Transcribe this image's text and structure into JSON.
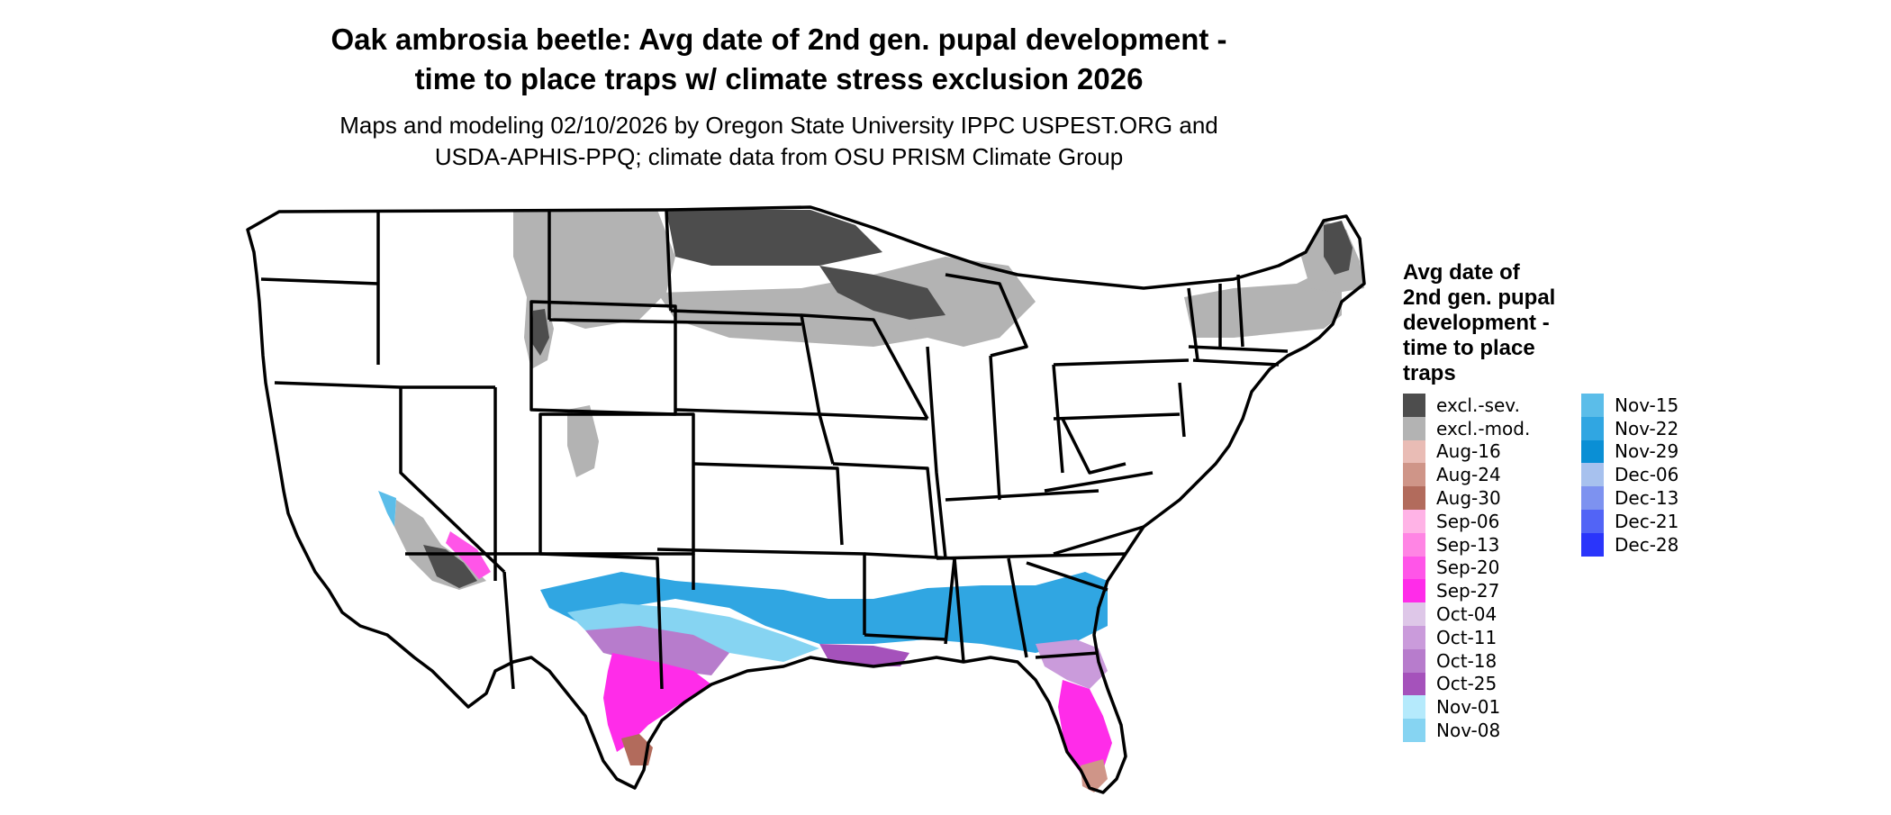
{
  "title": {
    "line1": "Oak ambrosia beetle: Avg date of 2nd gen. pupal development -",
    "line2": "time to place traps w/ climate stress exclusion 2026"
  },
  "subtitle": {
    "line1": "Maps and modeling 02/10/2026 by Oregon State University IPPC USPEST.ORG and",
    "line2": "USDA-APHIS-PPQ; climate data from OSU PRISM Climate Group"
  },
  "legend": {
    "title_lines": [
      "Avg date of",
      "2nd gen. pupal",
      "development -",
      "time to place",
      "traps"
    ],
    "column1": [
      {
        "label": "excl.-sev.",
        "color": "#4d4d4d"
      },
      {
        "label": "excl.-mod.",
        "color": "#b3b3b3"
      },
      {
        "label": "Aug-16",
        "color": "#e9bcb5"
      },
      {
        "label": "Aug-24",
        "color": "#cf9588"
      },
      {
        "label": "Aug-30",
        "color": "#b26b5c"
      },
      {
        "label": "Sep-06",
        "color": "#ffb3e6"
      },
      {
        "label": "Sep-13",
        "color": "#ff85e4"
      },
      {
        "label": "Sep-20",
        "color": "#ff55e8"
      },
      {
        "label": "Sep-27",
        "color": "#ff2ce9"
      },
      {
        "label": "Oct-04",
        "color": "#dec7e8"
      },
      {
        "label": "Oct-11",
        "color": "#ca9bdb"
      },
      {
        "label": "Oct-18",
        "color": "#b77ccc"
      },
      {
        "label": "Oct-25",
        "color": "#a552bb"
      },
      {
        "label": "Nov-01",
        "color": "#b5eafc"
      },
      {
        "label": "Nov-08",
        "color": "#86d4f2"
      }
    ],
    "column2": [
      {
        "label": "Nov-15",
        "color": "#5bbde9"
      },
      {
        "label": "Nov-22",
        "color": "#30a6e2"
      },
      {
        "label": "Nov-29",
        "color": "#0a8fd5"
      },
      {
        "label": "Dec-06",
        "color": "#a7c1ee"
      },
      {
        "label": "Dec-13",
        "color": "#7d92f0"
      },
      {
        "label": "Dec-21",
        "color": "#5264f6"
      },
      {
        "label": "Dec-28",
        "color": "#2a35fb"
      }
    ]
  },
  "map": {
    "state_border_color": "#000000",
    "background_color": "#ffffff"
  }
}
